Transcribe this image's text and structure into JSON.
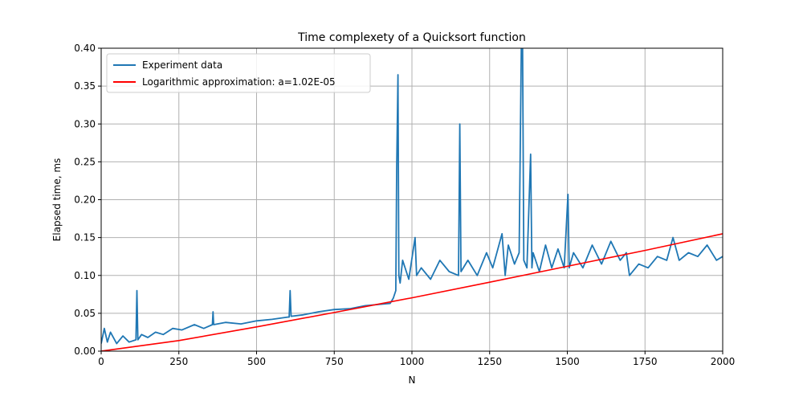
{
  "chart_data": {
    "type": "line",
    "title": "Time complexety of a Quicksort function",
    "xlabel": "N",
    "ylabel": "Elapsed time, ms",
    "xlim": [
      0,
      2000
    ],
    "ylim": [
      0,
      0.4
    ],
    "x_ticks": [
      0,
      250,
      500,
      750,
      1000,
      1250,
      1500,
      1750,
      2000
    ],
    "y_ticks": [
      0.0,
      0.05,
      0.1,
      0.15,
      0.2,
      0.25,
      0.3,
      0.35,
      0.4
    ],
    "x_tick_labels": [
      "0",
      "250",
      "500",
      "750",
      "1000",
      "1250",
      "1500",
      "1750",
      "2000"
    ],
    "y_tick_labels": [
      "0.00",
      "0.05",
      "0.10",
      "0.15",
      "0.20",
      "0.25",
      "0.30",
      "0.35",
      "0.40"
    ],
    "grid": true,
    "legend_position": "top-left",
    "series": [
      {
        "name": "Experiment data",
        "color": "#1f77b4",
        "x": [
          0,
          10,
          20,
          30,
          50,
          70,
          90,
          112,
          115,
          118,
          130,
          150,
          175,
          200,
          230,
          260,
          300,
          330,
          358,
          360,
          362,
          400,
          450,
          500,
          550,
          600,
          605,
          608,
          611,
          650,
          700,
          750,
          800,
          850,
          900,
          930,
          940,
          948,
          951,
          955,
          958,
          962,
          970,
          990,
          1010,
          1015,
          1030,
          1060,
          1090,
          1120,
          1150,
          1154,
          1158,
          1180,
          1210,
          1240,
          1260,
          1290,
          1300,
          1310,
          1330,
          1345,
          1352,
          1356,
          1360,
          1370,
          1382,
          1386,
          1390,
          1410,
          1430,
          1450,
          1470,
          1490,
          1502,
          1506,
          1520,
          1550,
          1580,
          1610,
          1640,
          1670,
          1690,
          1700,
          1730,
          1760,
          1790,
          1820,
          1840,
          1860,
          1890,
          1920,
          1950,
          1980,
          2000
        ],
        "y": [
          0.01,
          0.03,
          0.012,
          0.025,
          0.01,
          0.02,
          0.012,
          0.015,
          0.08,
          0.015,
          0.022,
          0.018,
          0.025,
          0.022,
          0.03,
          0.028,
          0.035,
          0.03,
          0.035,
          0.052,
          0.035,
          0.038,
          0.036,
          0.04,
          0.042,
          0.045,
          0.045,
          0.08,
          0.046,
          0.048,
          0.052,
          0.055,
          0.056,
          0.06,
          0.062,
          0.063,
          0.07,
          0.08,
          0.24,
          0.365,
          0.1,
          0.09,
          0.12,
          0.095,
          0.15,
          0.1,
          0.11,
          0.095,
          0.12,
          0.105,
          0.1,
          0.3,
          0.105,
          0.12,
          0.1,
          0.13,
          0.11,
          0.155,
          0.1,
          0.14,
          0.115,
          0.13,
          0.4,
          0.4,
          0.12,
          0.11,
          0.26,
          0.11,
          0.13,
          0.105,
          0.14,
          0.11,
          0.135,
          0.11,
          0.207,
          0.11,
          0.13,
          0.11,
          0.14,
          0.115,
          0.145,
          0.12,
          0.13,
          0.1,
          0.115,
          0.11,
          0.125,
          0.12,
          0.15,
          0.12,
          0.13,
          0.125,
          0.14,
          0.12,
          0.125
        ]
      },
      {
        "name": "Logarithmic approximation: a=1.02E-05",
        "color": "#ff0000",
        "x": [
          0,
          250,
          500,
          750,
          1000,
          1250,
          1500,
          1750,
          2000
        ],
        "y": [
          0.0,
          0.014,
          0.032,
          0.051,
          0.0705,
          0.091,
          0.112,
          0.133,
          0.155
        ]
      }
    ]
  }
}
